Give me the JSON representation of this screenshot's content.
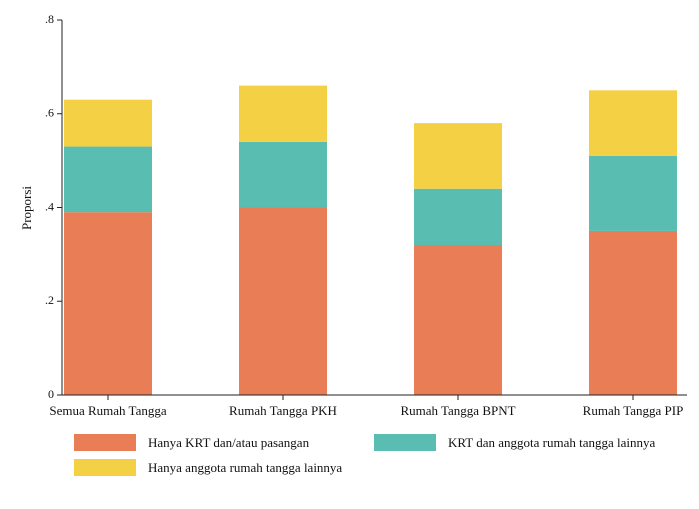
{
  "chart_data": {
    "type": "bar",
    "stacked": true,
    "ylabel": "Proporsi",
    "ylim": [
      0,
      0.8
    ],
    "yticks": [
      0,
      0.2,
      0.4,
      0.6,
      0.8
    ],
    "ytick_labels": [
      "0",
      ".2",
      ".4",
      ".6",
      ".8"
    ],
    "categories": [
      "Semua Rumah Tangga",
      "Rumah Tangga PKH",
      "Rumah Tangga BPNT",
      "Rumah Tangga PIP"
    ],
    "series": [
      {
        "name": "Hanya KRT dan/atau pasangan",
        "color": "#E97E56",
        "values": [
          0.39,
          0.4,
          0.32,
          0.35
        ]
      },
      {
        "name": "KRT dan anggota rumah tangga lainnya",
        "color": "#59BDB2",
        "values": [
          0.14,
          0.14,
          0.12,
          0.16
        ]
      },
      {
        "name": "Hanya anggota rumah tangga lainnya",
        "color": "#F4D044",
        "values": [
          0.1,
          0.12,
          0.14,
          0.14
        ]
      }
    ],
    "legend_position": "bottom"
  }
}
